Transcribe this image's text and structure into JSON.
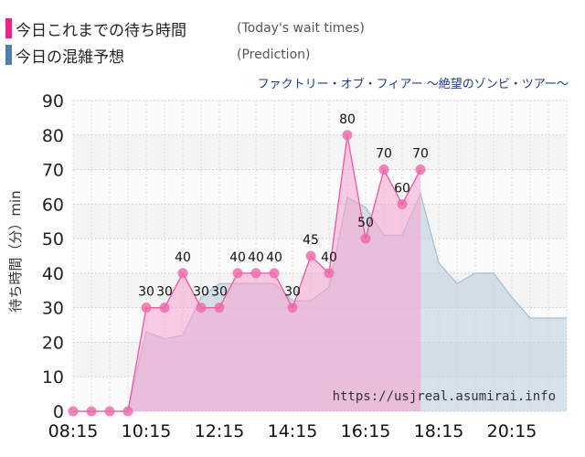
{
  "legend": {
    "today_label": "今日これまでの待ち時間",
    "today_sub": "(Today's wait times)",
    "prediction_label": "今日の混雑予想",
    "prediction_sub": "(Prediction)"
  },
  "colors": {
    "today_line": "#f0569e",
    "today_fill": "#f6a3d0",
    "today_marker": "#ee66aa",
    "prediction_line": "#a9bdd0",
    "prediction_fill": "#c3d2de",
    "legend_today": "#e8238c",
    "legend_prediction": "#4d7fad",
    "plot_bg_a": "#f4f4f4",
    "plot_bg_b": "#fbfbfb"
  },
  "chart_data": {
    "type": "area",
    "title": "ファクトリー・オブ・フィアー ～絶望のゾンビ・ツアー～",
    "ylabel": "待ち時間（分）min",
    "xlabel": "",
    "x_ticks": [
      "08:15",
      "10:15",
      "12:15",
      "14:15",
      "16:15",
      "18:15",
      "20:15"
    ],
    "y_ticks": [
      0,
      10,
      20,
      30,
      40,
      50,
      60,
      70,
      80,
      90
    ],
    "xlim": [
      "08:15",
      "21:45"
    ],
    "ylim": [
      0,
      90
    ],
    "watermark": "https://usjreal.asumirai.info",
    "series": [
      {
        "name": "今日これまでの待ち時間",
        "points": [
          {
            "x": "08:15",
            "y": 0
          },
          {
            "x": "08:45",
            "y": 0
          },
          {
            "x": "09:15",
            "y": 0
          },
          {
            "x": "09:45",
            "y": 0
          },
          {
            "x": "10:15",
            "y": 30
          },
          {
            "x": "10:45",
            "y": 30
          },
          {
            "x": "11:15",
            "y": 40
          },
          {
            "x": "11:45",
            "y": 30
          },
          {
            "x": "12:15",
            "y": 30
          },
          {
            "x": "12:45",
            "y": 40
          },
          {
            "x": "13:15",
            "y": 40
          },
          {
            "x": "13:45",
            "y": 40
          },
          {
            "x": "14:15",
            "y": 30
          },
          {
            "x": "14:45",
            "y": 45
          },
          {
            "x": "15:15",
            "y": 40
          },
          {
            "x": "15:45",
            "y": 80
          },
          {
            "x": "16:15",
            "y": 50
          },
          {
            "x": "16:45",
            "y": 70
          },
          {
            "x": "17:15",
            "y": 60
          },
          {
            "x": "17:45",
            "y": 70
          }
        ]
      },
      {
        "name": "今日の混雑予想",
        "points": [
          {
            "x": "08:15",
            "y": 0
          },
          {
            "x": "09:45",
            "y": 0
          },
          {
            "x": "10:00",
            "y": 12
          },
          {
            "x": "10:15",
            "y": 23
          },
          {
            "x": "10:45",
            "y": 21
          },
          {
            "x": "11:15",
            "y": 22
          },
          {
            "x": "11:45",
            "y": 33
          },
          {
            "x": "12:15",
            "y": 37
          },
          {
            "x": "12:45",
            "y": 37
          },
          {
            "x": "13:45",
            "y": 37
          },
          {
            "x": "14:15",
            "y": 32
          },
          {
            "x": "14:45",
            "y": 32
          },
          {
            "x": "15:15",
            "y": 36
          },
          {
            "x": "15:45",
            "y": 62
          },
          {
            "x": "16:15",
            "y": 59
          },
          {
            "x": "16:45",
            "y": 51
          },
          {
            "x": "17:15",
            "y": 51
          },
          {
            "x": "17:45",
            "y": 63
          },
          {
            "x": "18:15",
            "y": 43
          },
          {
            "x": "18:45",
            "y": 37
          },
          {
            "x": "19:15",
            "y": 40
          },
          {
            "x": "19:45",
            "y": 40
          },
          {
            "x": "20:15",
            "y": 33
          },
          {
            "x": "20:45",
            "y": 27
          },
          {
            "x": "21:45",
            "y": 27
          }
        ]
      }
    ],
    "data_labels": [
      {
        "x": "10:15",
        "label": "30"
      },
      {
        "x": "10:45",
        "label": "30"
      },
      {
        "x": "11:15",
        "label": "40"
      },
      {
        "x": "11:45",
        "label": "30"
      },
      {
        "x": "12:15",
        "label": "30"
      },
      {
        "x": "12:45",
        "label": "40"
      },
      {
        "x": "13:15",
        "label": "40"
      },
      {
        "x": "13:45",
        "label": "40"
      },
      {
        "x": "14:15",
        "label": "30"
      },
      {
        "x": "14:45",
        "label": "45"
      },
      {
        "x": "15:15",
        "label": "40"
      },
      {
        "x": "15:45",
        "label": "80"
      },
      {
        "x": "16:15",
        "label": "50"
      },
      {
        "x": "16:45",
        "label": "70"
      },
      {
        "x": "17:15",
        "label": "60"
      },
      {
        "x": "17:45",
        "label": "70"
      }
    ],
    "grid": true,
    "legend_position": "top-left"
  }
}
